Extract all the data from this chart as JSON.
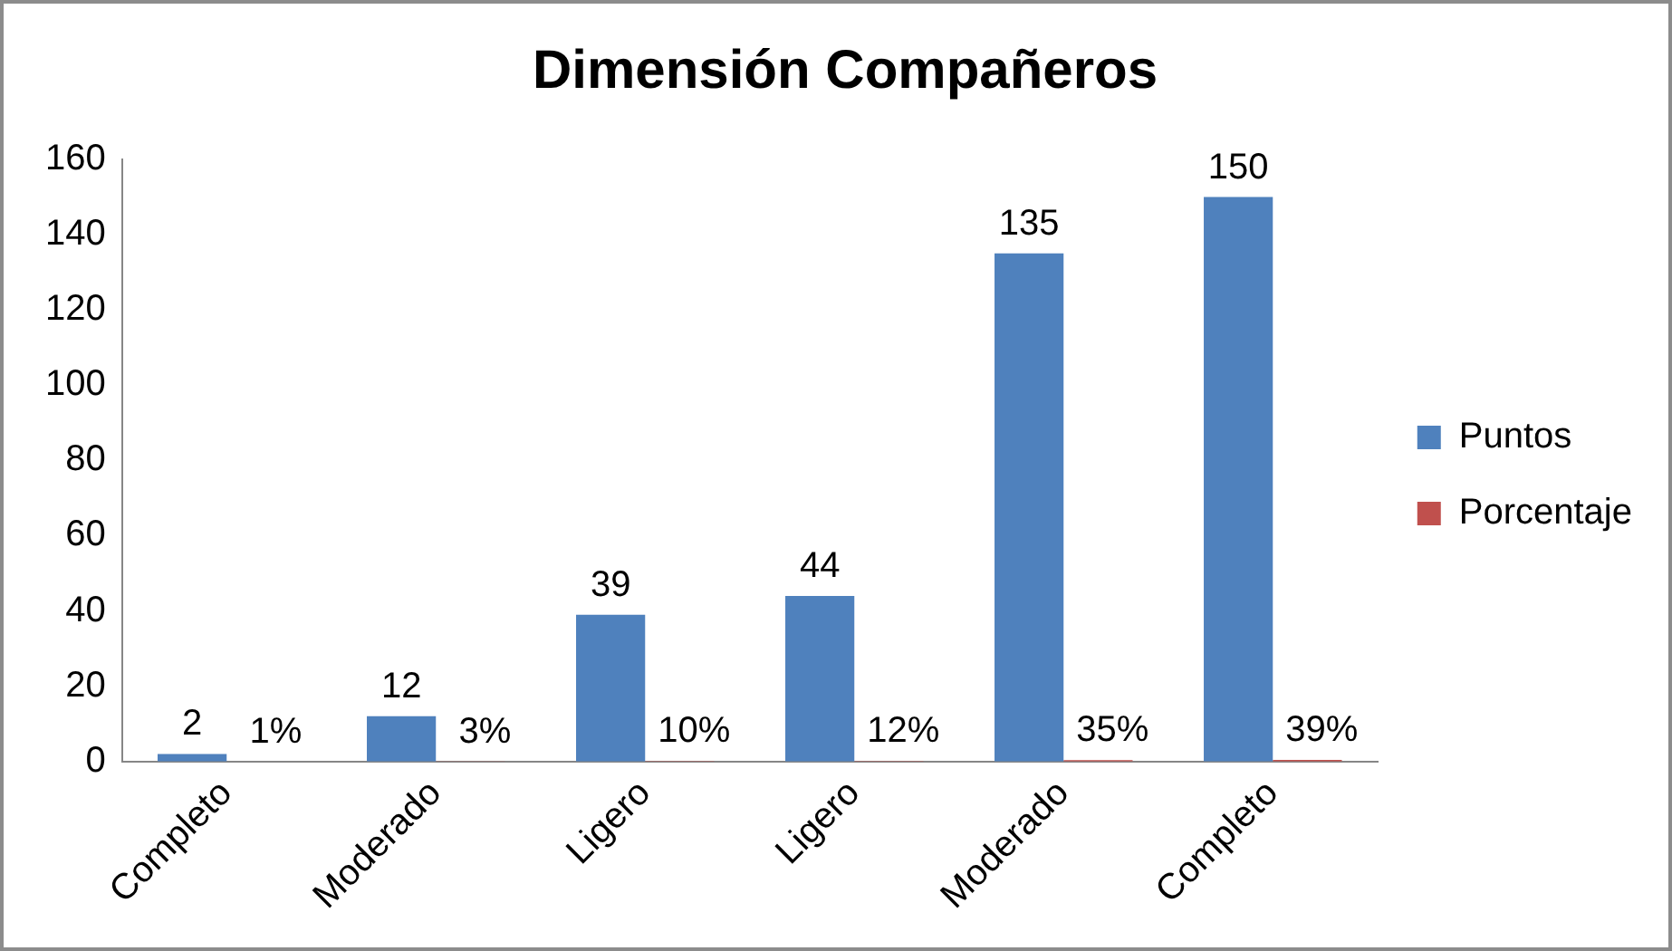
{
  "chart_data": {
    "type": "bar",
    "title": "Dimensión Compañeros",
    "categories": [
      "Completo",
      "Moderado",
      "Ligero",
      "Ligero",
      "Moderado",
      "Completo"
    ],
    "series": [
      {
        "name": "Puntos",
        "color": "#4f81bd",
        "values": [
          2,
          12,
          39,
          44,
          135,
          150
        ],
        "value_labels": [
          "2",
          "12",
          "39",
          "44",
          "135",
          "150"
        ]
      },
      {
        "name": "Porcentaje",
        "color": "#c0504d",
        "values": [
          0.01,
          0.03,
          0.1,
          0.12,
          0.35,
          0.39
        ],
        "value_labels": [
          "1%",
          "3%",
          "10%",
          "12%",
          "35%",
          "39%"
        ]
      }
    ],
    "ylim": [
      0,
      160
    ],
    "yticks": [
      0,
      20,
      40,
      60,
      80,
      100,
      120,
      140,
      160
    ],
    "grid": false,
    "legend": "right"
  }
}
